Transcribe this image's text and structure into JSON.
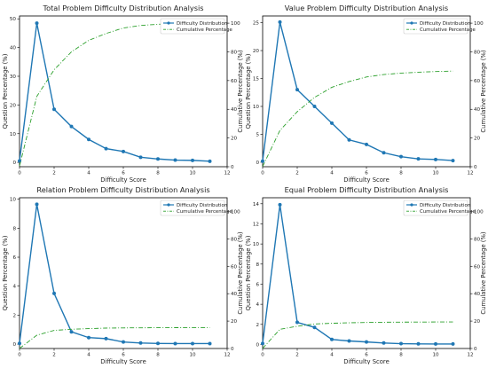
{
  "chart_data": [
    {
      "type": "line",
      "title": "Total Problem Difficulty Distribution Analysis",
      "xlabel": "Difficulty Score",
      "ylabel": "Question Percentage (%)",
      "y2label": "Cumulative Percentage (%)",
      "xlim": [
        0,
        12
      ],
      "ylim": [
        -1.5,
        51
      ],
      "y2lim": [
        0,
        105
      ],
      "xticks": [
        0,
        2,
        4,
        6,
        8,
        10,
        12
      ],
      "yticks": [
        0,
        10,
        20,
        30,
        40,
        50
      ],
      "y2ticks": [
        0,
        20,
        40,
        60,
        80,
        100
      ],
      "x": [
        0,
        1,
        2,
        3,
        4,
        5,
        6,
        7,
        8,
        9,
        10,
        11
      ],
      "series": [
        {
          "name": "Difficulty Distribution",
          "axis": "left",
          "style": "solid-marker",
          "color": "#1f77b4",
          "values": [
            0.5,
            48.5,
            18.5,
            12.5,
            8,
            4.8,
            3.8,
            1.8,
            1.2,
            0.8,
            0.7,
            0.4
          ]
        },
        {
          "name": "Cumulative Percentage",
          "axis": "right",
          "style": "dashdot",
          "color": "#2ca02c",
          "values": [
            0.5,
            49,
            67.5,
            80,
            88,
            92.8,
            96.6,
            98.4,
            99.2,
            99.6,
            99.8,
            100
          ]
        }
      ],
      "legend": "top-right",
      "grid": false
    },
    {
      "type": "line",
      "title": "Value Problem Difficulty Distribution Analysis",
      "xlabel": "Difficulty Score",
      "ylabel": "Question Percentage (%)",
      "y2label": "Cumulative Percentage (%)",
      "xlim": [
        0,
        12
      ],
      "ylim": [
        -0.8,
        26.2
      ],
      "y2lim": [
        0,
        105
      ],
      "xticks": [
        0,
        2,
        4,
        6,
        8,
        10,
        12
      ],
      "yticks": [
        0,
        5,
        10,
        15,
        20,
        25
      ],
      "y2ticks": [
        0,
        20,
        40,
        60,
        80,
        100
      ],
      "x": [
        0,
        1,
        2,
        3,
        4,
        5,
        6,
        7,
        8,
        9,
        10,
        11
      ],
      "series": [
        {
          "name": "Difficulty Distribution",
          "axis": "left",
          "style": "solid-marker",
          "color": "#1f77b4",
          "values": [
            0.2,
            25.1,
            13,
            10,
            7,
            4,
            3.2,
            1.7,
            1,
            0.6,
            0.5,
            0.3
          ]
        },
        {
          "name": "Cumulative Percentage",
          "axis": "right",
          "style": "dashdot",
          "color": "#2ca02c",
          "values": [
            0.2,
            25.3,
            38.3,
            48.3,
            55.3,
            59.3,
            62.5,
            64.2,
            65.2,
            65.8,
            66.3,
            66.6
          ]
        }
      ],
      "legend": "top-right",
      "grid": false
    },
    {
      "type": "line",
      "title": "Relation Problem Difficulty Distribution Analysis",
      "xlabel": "Difficulty Score",
      "ylabel": "Question Percentage (%)",
      "y2label": "Cumulative Percentage (%)",
      "xlim": [
        0,
        12
      ],
      "ylim": [
        -0.3,
        10.1
      ],
      "y2lim": [
        0,
        110
      ],
      "xticks": [
        0,
        2,
        4,
        6,
        8,
        10,
        12
      ],
      "yticks": [
        0,
        2,
        4,
        6,
        8,
        10
      ],
      "y2ticks": [
        0,
        20,
        40,
        60,
        80,
        100
      ],
      "x": [
        0,
        1,
        2,
        3,
        4,
        5,
        6,
        7,
        8,
        9,
        10,
        11
      ],
      "series": [
        {
          "name": "Difficulty Distribution",
          "axis": "left",
          "style": "solid-marker",
          "color": "#1f77b4",
          "values": [
            0.05,
            9.65,
            3.5,
            0.85,
            0.45,
            0.38,
            0.15,
            0.08,
            0.05,
            0.04,
            0.04,
            0.04
          ]
        },
        {
          "name": "Cumulative Percentage",
          "axis": "right",
          "style": "dashdot",
          "color": "#2ca02c",
          "values": [
            0.05,
            9.7,
            13.2,
            14.05,
            14.5,
            14.88,
            15.03,
            15.11,
            15.16,
            15.2,
            15.24,
            15.28
          ]
        }
      ],
      "legend": "top-right",
      "grid": false
    },
    {
      "type": "line",
      "title": "Equal Problem Difficulty Distribution Analysis",
      "xlabel": "Difficulty Score",
      "ylabel": "Question Percentage (%)",
      "y2label": "Cumulative Percentage (%)",
      "xlim": [
        0,
        12
      ],
      "ylim": [
        -0.4,
        14.6
      ],
      "y2lim": [
        0,
        110
      ],
      "xticks": [
        0,
        2,
        4,
        6,
        8,
        10,
        12
      ],
      "yticks": [
        0,
        2,
        4,
        6,
        8,
        10,
        12,
        14
      ],
      "y2ticks": [
        0,
        20,
        40,
        60,
        80,
        100
      ],
      "x": [
        0,
        1,
        2,
        3,
        4,
        5,
        6,
        7,
        8,
        9,
        10,
        11
      ],
      "series": [
        {
          "name": "Difficulty Distribution",
          "axis": "left",
          "style": "solid-marker",
          "color": "#1f77b4",
          "values": [
            0.1,
            13.9,
            2.2,
            1.7,
            0.5,
            0.35,
            0.25,
            0.15,
            0.08,
            0.06,
            0.05,
            0.05
          ]
        },
        {
          "name": "Cumulative Percentage",
          "axis": "right",
          "style": "dashdot",
          "color": "#2ca02c",
          "values": [
            0.1,
            14,
            16.2,
            17.9,
            18.4,
            18.75,
            19.0,
            19.15,
            19.23,
            19.29,
            19.34,
            19.39
          ]
        }
      ],
      "legend": "top-right",
      "grid": false
    }
  ]
}
